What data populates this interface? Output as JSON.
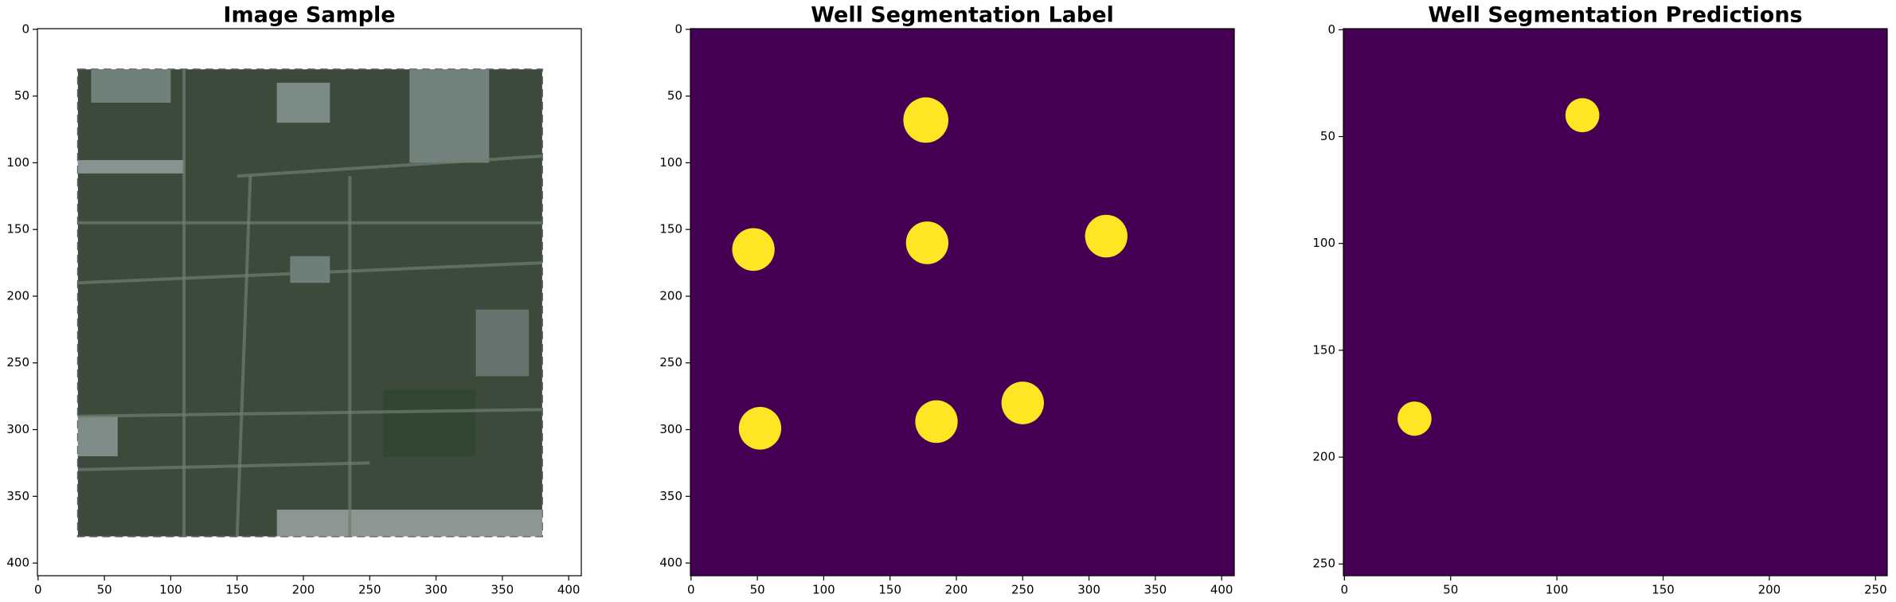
{
  "chart_data": [
    {
      "type": "image",
      "title": "Image Sample",
      "xlim": [
        -0.5,
        409.5
      ],
      "ylim": [
        409.5,
        -0.5
      ],
      "xticks": [
        0,
        50,
        100,
        150,
        200,
        250,
        300,
        350,
        400
      ],
      "yticks": [
        0,
        50,
        100,
        150,
        200,
        250,
        300,
        350,
        400
      ]
    },
    {
      "type": "mask",
      "title": "Well Segmentation Label",
      "xlim": [
        -0.5,
        409.5
      ],
      "ylim": [
        409.5,
        -0.5
      ],
      "xticks": [
        0,
        50,
        100,
        150,
        200,
        250,
        300,
        350,
        400
      ],
      "yticks": [
        0,
        50,
        100,
        150,
        200,
        250,
        300,
        350,
        400
      ],
      "background_color": "#440154",
      "color": "#fde725",
      "wells": {
        "x": [
          177,
          47,
          178,
          313,
          52,
          185,
          250
        ],
        "y": [
          68,
          165,
          160,
          155,
          299,
          294,
          280
        ],
        "r": [
          17,
          16,
          16,
          16,
          16,
          16,
          16
        ]
      }
    },
    {
      "type": "mask",
      "title": "Well Segmentation Predictions",
      "xlim": [
        -0.5,
        255.5
      ],
      "ylim": [
        255.5,
        -0.5
      ],
      "xticks": [
        0,
        50,
        100,
        150,
        200,
        250
      ],
      "yticks": [
        0,
        50,
        100,
        150,
        200,
        250
      ],
      "background_color": "#440154",
      "color": "#fde725",
      "wells": {
        "x": [
          112,
          33
        ],
        "y": [
          40,
          182
        ],
        "r": [
          8,
          8
        ]
      }
    }
  ]
}
